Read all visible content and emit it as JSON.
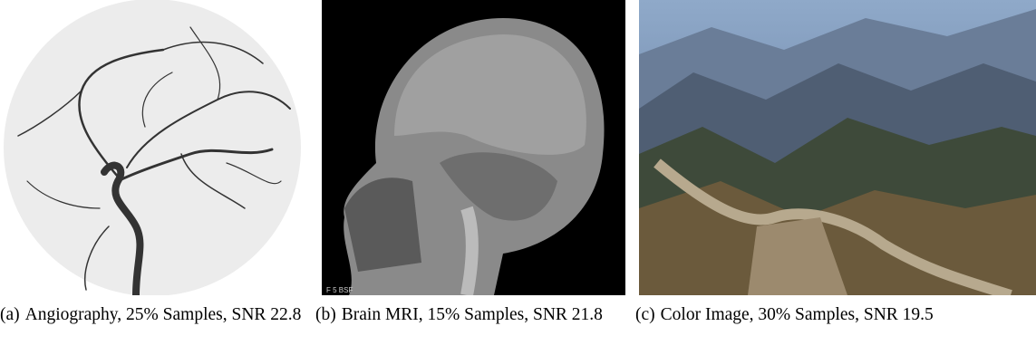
{
  "figures": [
    {
      "label": "(a)",
      "caption": "Angiography, 25% Samples, SNR 22.8"
    },
    {
      "label": "(b)",
      "caption": "Brain MRI, 15% Samples, SNR 21.8",
      "overlay": "F 5 BSF"
    },
    {
      "label": "(c)",
      "caption": "Color Image, 30% Samples, SNR 19.5"
    }
  ]
}
